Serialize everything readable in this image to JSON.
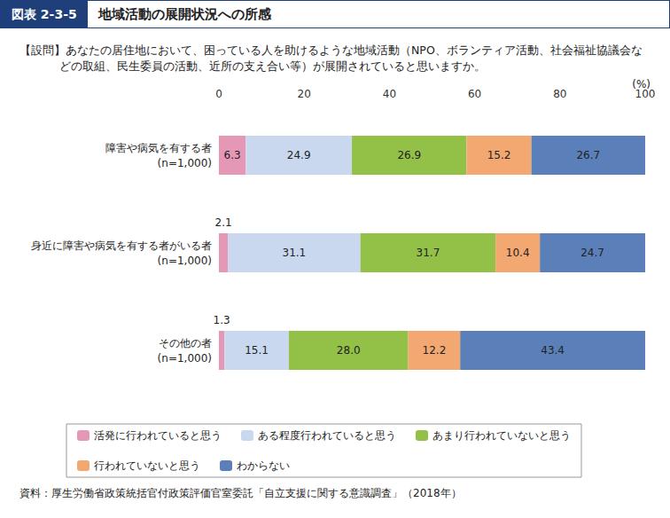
{
  "chart_data": {
    "type": "bar",
    "orientation": "horizontal",
    "stacked": true,
    "data_labels": true,
    "grid": false,
    "legend": "bottom",
    "figure_label": "図表 2-3-5",
    "title": "地域活動の展開状況への所感",
    "subtitle": "【設問】あなたの居住地において、困っている人を助けるような地域活動（NPO、ボランティア活動、社会福祉協議会などの取組、民生委員の活動、近所の支え合い等）が展開されていると思いますか。",
    "xlabel": "(%)",
    "source": "資料：厚生労働省政策統括官付政策評価官室委託「自立支援に関する意識調査」（2018年）",
    "categories": [
      "障害や病気を有する者\n(n=1,000)",
      "身近に障害や病気を有する者がいる者\n(n=1,000)",
      "その他の者\n(n=1,000)"
    ],
    "xlim": [
      0,
      100
    ],
    "xticks": [
      0,
      20,
      40,
      60,
      80,
      100
    ],
    "series": [
      {
        "name": "活発に行われていると思う",
        "color": "#e597b6",
        "values": [
          6.3,
          2.1,
          1.3
        ]
      },
      {
        "name": "ある程度行われていると思う",
        "color": "#c9d8ef",
        "values": [
          24.9,
          31.1,
          15.1
        ]
      },
      {
        "name": "あまり行われていないと思う",
        "color": "#93c047",
        "values": [
          26.9,
          31.7,
          28.0
        ],
        "value_labels": [
          "26.9",
          "31.7",
          "28.0"
        ]
      },
      {
        "name": "行われていないと思う",
        "color": "#f2a870",
        "values": [
          15.2,
          10.4,
          12.2
        ]
      },
      {
        "name": "わからない",
        "color": "#5b7fb8",
        "values": [
          26.7,
          24.7,
          43.4
        ]
      }
    ]
  }
}
